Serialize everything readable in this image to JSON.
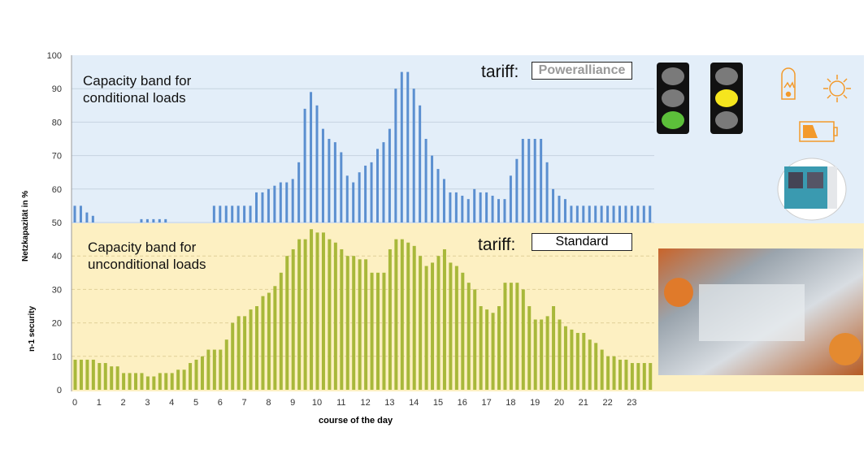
{
  "chart_data": {
    "type": "bar",
    "title": "",
    "xlabel": "course of the day",
    "ylabel": "Netzkapazität in %",
    "ylabel2": "n-1 security",
    "ylim": [
      0,
      100
    ],
    "xlim": [
      0,
      24
    ],
    "x_step_hours": 0.25,
    "yticks": [
      0,
      10,
      20,
      30,
      40,
      50,
      60,
      70,
      80,
      90,
      100
    ],
    "xticks": [
      0,
      1,
      2,
      3,
      4,
      5,
      6,
      7,
      8,
      9,
      10,
      11,
      12,
      13,
      14,
      15,
      16,
      17,
      18,
      19,
      20,
      21,
      22,
      23
    ],
    "grid": true,
    "series": [
      {
        "name": "Capacity band for conditional loads",
        "color": "#5b8fd0",
        "baseline": 50,
        "values": [
          55,
          55,
          53,
          52,
          50,
          50,
          50,
          50,
          50,
          50,
          50,
          51,
          51,
          51,
          51,
          51,
          50,
          50,
          50,
          50,
          50,
          50,
          50,
          55,
          55,
          55,
          55,
          55,
          55,
          55,
          59,
          59,
          60,
          61,
          62,
          62,
          63,
          68,
          84,
          89,
          85,
          78,
          75,
          74,
          71,
          64,
          62,
          65,
          67,
          68,
          72,
          74,
          78,
          90,
          95,
          95,
          90,
          85,
          75,
          70,
          66,
          63,
          59,
          59,
          58,
          57,
          60,
          59,
          59,
          58,
          57,
          57,
          64,
          69,
          75,
          75,
          75,
          75,
          68,
          60,
          58,
          57,
          55,
          55,
          55,
          55,
          55,
          55,
          55,
          55,
          55,
          55,
          55,
          55,
          55,
          55
        ]
      },
      {
        "name": "Capacity band for unconditional loads",
        "color": "#a8b83a",
        "baseline": 0,
        "values": [
          9,
          9,
          9,
          9,
          8,
          8,
          7,
          7,
          5,
          5,
          5,
          5,
          4,
          4,
          5,
          5,
          5,
          6,
          6,
          8,
          9,
          10,
          12,
          12,
          12,
          15,
          20,
          22,
          22,
          24,
          25,
          28,
          29,
          31,
          35,
          40,
          42,
          45,
          45,
          48,
          47,
          47,
          45,
          44,
          42,
          40,
          40,
          39,
          39,
          35,
          35,
          35,
          42,
          45,
          45,
          44,
          43,
          40,
          37,
          38,
          40,
          42,
          38,
          37,
          35,
          32,
          30,
          25,
          24,
          23,
          25,
          32,
          32,
          32,
          30,
          25,
          21,
          21,
          22,
          25,
          21,
          19,
          18,
          17,
          17,
          15,
          14,
          12,
          10,
          10,
          9,
          9,
          8,
          8,
          8,
          8
        ]
      }
    ]
  },
  "bands": {
    "upper": {
      "label_line1": "Capacity band for",
      "label_line2": "conditional loads",
      "tariff_label": "tariff:",
      "tariff_value": "Poweralliance",
      "background": "#e3eef9"
    },
    "lower": {
      "label_line1": "Capacity band for",
      "label_line2": "unconditional loads",
      "tariff_label": "tariff:",
      "tariff_value": "Standard",
      "background": "#fdf0c2"
    }
  },
  "traffic_lights": [
    {
      "active": "green",
      "color": "#5cbf3a"
    },
    {
      "active": "yellow",
      "color": "#f5e51e"
    }
  ],
  "icon_color": "#f39a2b"
}
